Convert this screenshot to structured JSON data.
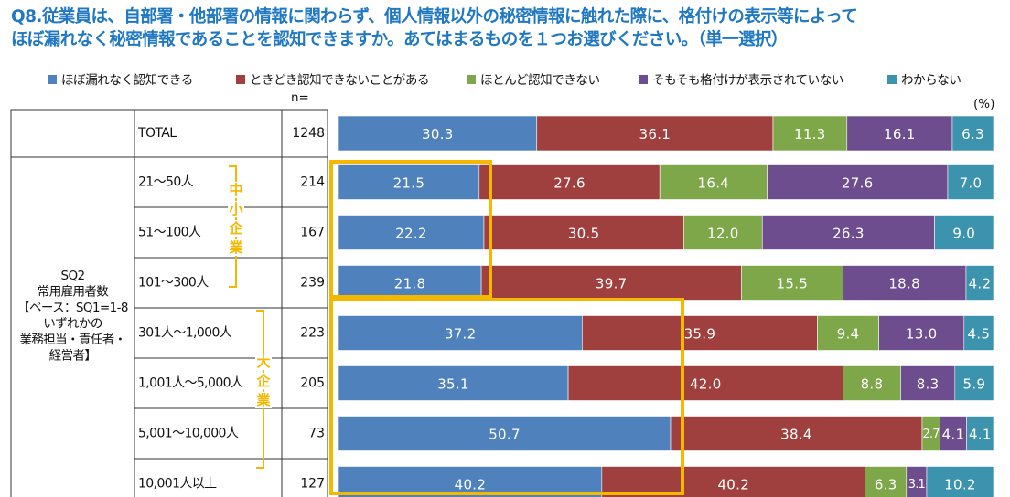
{
  "title": {
    "line1": "Q8.従業員は、自部署・他部署の情報に関わらず、個人情報以外の秘密情報に触れた際に、格付けの表示等によって",
    "line2": "ほぼ漏れなく秘密情報であることを認知できますか。あてはまるものを１つお選びください。（単一選択）"
  },
  "n_header": "n=",
  "unit_label": "(%)",
  "group_label": [
    "SQ2",
    "常用雇用者数",
    "【ベース：SQ1=1-8",
    "いずれかの",
    "業務担当・責任者・",
    "経営者】"
  ],
  "bracket_small": [
    "中",
    "小",
    "企",
    "業"
  ],
  "bracket_large": [
    "大",
    "企",
    "業"
  ],
  "colors": {
    "s1": "#4f81bd",
    "s2": "#a0403e",
    "s3": "#7ea74a",
    "s4": "#6d4d8e",
    "s5": "#3b93ad",
    "highlight": "#f5b800",
    "title": "#1f78c1"
  },
  "chart_data": {
    "type": "bar",
    "orientation": "horizontal",
    "stacked": true,
    "percent": true,
    "title": "Q8.従業員は、自部署・他部署の情報に関わらず、個人情報以外の秘密情報に触れた際に、格付けの表示等によって ほぼ漏れなく秘密情報であることを認知できますか。あてはまるものを１つお選びください。（単一選択）",
    "xlim": [
      0,
      100
    ],
    "legend_position": "top",
    "categories": [
      "TOTAL",
      "21～50人",
      "51～100人",
      "101～300人",
      "301人～1,000人",
      "1,001人～5,000人",
      "5,001～10,000人",
      "10,001人以上"
    ],
    "n": [
      "1248",
      "214",
      "167",
      "239",
      "223",
      "205",
      "73",
      "127"
    ],
    "series": [
      {
        "name": "ほぼ漏れなく認知できる",
        "values": [
          30.3,
          21.5,
          22.2,
          21.8,
          37.2,
          35.1,
          50.7,
          40.2
        ],
        "labels": [
          "30.3",
          "21.5",
          "22.2",
          "21.8",
          "37.2",
          "35.1",
          "50.7",
          "40.2"
        ]
      },
      {
        "name": "ときどき認知できないことがある",
        "values": [
          36.1,
          27.6,
          30.5,
          39.7,
          35.9,
          42.0,
          38.4,
          40.2
        ],
        "labels": [
          "36.1",
          "27.6",
          "30.5",
          "39.7",
          "35.9",
          "42.0",
          "38.4",
          "40.2"
        ]
      },
      {
        "name": "ほとんど認知できない",
        "values": [
          11.3,
          16.4,
          12.0,
          15.5,
          9.4,
          8.8,
          2.7,
          6.3
        ],
        "labels": [
          "11.3",
          "16.4",
          "12.0",
          "15.5",
          "9.4",
          "8.8",
          "2.7",
          "6.3"
        ]
      },
      {
        "name": "そもそも格付けが表示されていない",
        "values": [
          16.1,
          27.6,
          26.3,
          18.8,
          13.0,
          8.3,
          4.1,
          3.1
        ],
        "labels": [
          "16.1",
          "27.6",
          "26.3",
          "18.8",
          "13.0",
          "8.3",
          "4.1",
          "3.1"
        ]
      },
      {
        "name": "わからない",
        "values": [
          6.3,
          7.0,
          9.0,
          4.2,
          4.5,
          5.9,
          4.1,
          10.2
        ],
        "labels": [
          "6.3",
          "7.0",
          "9.0",
          "4.2",
          "4.5",
          "5.9",
          "4.1",
          "10.2"
        ]
      }
    ]
  }
}
